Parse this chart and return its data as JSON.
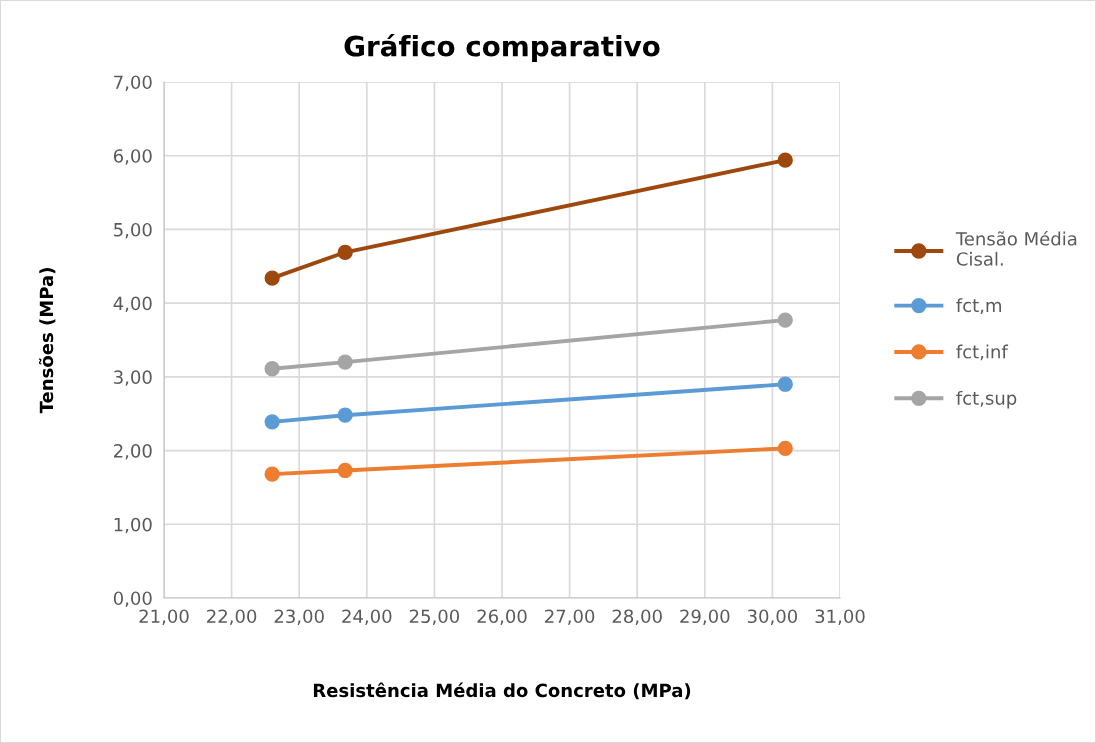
{
  "chart_data": {
    "type": "line",
    "title": "Gráfico comparativo",
    "xlabel": "Resistência Média do Concreto (MPa)",
    "ylabel": "Tensões (MPa)",
    "x": [
      22.6,
      23.68,
      30.19
    ],
    "series": [
      {
        "name": "Tensão Média Cisal.",
        "color": "#9e480e",
        "values": [
          4.34,
          4.69,
          5.94
        ]
      },
      {
        "name": "fct,m",
        "color": "#5b9bd5",
        "values": [
          2.39,
          2.48,
          2.9
        ]
      },
      {
        "name": "fct,inf",
        "color": "#ed7d31",
        "values": [
          1.68,
          1.73,
          2.03
        ]
      },
      {
        "name": "fct,sup",
        "color": "#a5a5a5",
        "values": [
          3.11,
          3.2,
          3.77
        ]
      }
    ],
    "xlim": [
      21,
      31
    ],
    "ylim": [
      0,
      7
    ],
    "xticks": [
      {
        "value": 21,
        "label": "21,00"
      },
      {
        "value": 22,
        "label": "22,00"
      },
      {
        "value": 23,
        "label": "23,00"
      },
      {
        "value": 24,
        "label": "24,00"
      },
      {
        "value": 25,
        "label": "25,00"
      },
      {
        "value": 26,
        "label": "26,00"
      },
      {
        "value": 27,
        "label": "27,00"
      },
      {
        "value": 28,
        "label": "28,00"
      },
      {
        "value": 29,
        "label": "29,00"
      },
      {
        "value": 30,
        "label": "30,00"
      },
      {
        "value": 31,
        "label": "31,00"
      }
    ],
    "yticks": [
      {
        "value": 0,
        "label": "0,00"
      },
      {
        "value": 1,
        "label": "1,00"
      },
      {
        "value": 2,
        "label": "2,00"
      },
      {
        "value": 3,
        "label": "3,00"
      },
      {
        "value": 4,
        "label": "4,00"
      },
      {
        "value": 5,
        "label": "5,00"
      },
      {
        "value": 6,
        "label": "6,00"
      },
      {
        "value": 7,
        "label": "7,00"
      }
    ],
    "grid": true,
    "legend": "right",
    "marker": "circle",
    "line_style": "solid"
  }
}
